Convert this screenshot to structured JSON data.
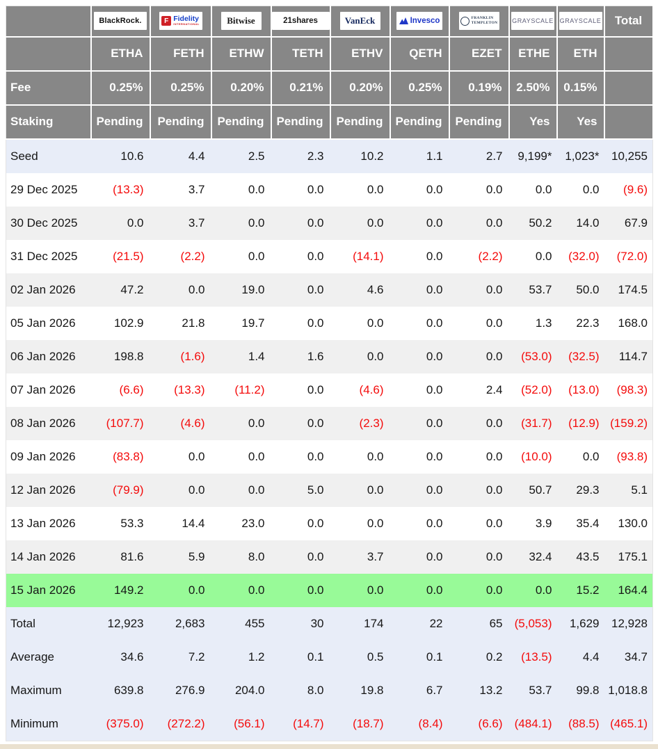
{
  "colors": {
    "header_bg": "#878787",
    "header_text": "#ffffff",
    "seed_bg": "#e8edf8",
    "summary_bg": "#e8edf8",
    "alt_bg": "#f0f0f0",
    "green_bg": "#98fa98",
    "negative_text": "#f40b0b",
    "text": "#161616",
    "page_strip": "#eae1cf",
    "invesco_blue": "#2038c8"
  },
  "chart_data": {
    "type": "table",
    "header": {
      "total_label": "Total",
      "fee_label": "Fee",
      "staking_label": "Staking"
    },
    "logos": {
      "blackrock": {
        "text": "BlackRock."
      },
      "fidelity": {
        "icon_letter": "F",
        "text": "Fidelity",
        "subtext": "INTERNATIONAL"
      },
      "bitwise": {
        "text": "Bitwise"
      },
      "shares21": {
        "text": "21shares"
      },
      "vaneck": {
        "text": "VanEck"
      },
      "invesco": {
        "text": "Invesco"
      },
      "franklin": {
        "line1": "FRANKLIN",
        "line2": "TEMPLETON"
      },
      "grayscale": {
        "text": "GRAYSCALE"
      }
    },
    "providers": [
      {
        "logo": "blackrock",
        "issuer": "BlackRock",
        "ticker": "ETHA",
        "fee": "0.25%",
        "staking": "Pending"
      },
      {
        "logo": "fidelity",
        "issuer": "Fidelity",
        "ticker": "FETH",
        "fee": "0.25%",
        "staking": "Pending"
      },
      {
        "logo": "bitwise",
        "issuer": "Bitwise",
        "ticker": "ETHW",
        "fee": "0.20%",
        "staking": "Pending"
      },
      {
        "logo": "shares21",
        "issuer": "21shares",
        "ticker": "TETH",
        "fee": "0.21%",
        "staking": "Pending"
      },
      {
        "logo": "vaneck",
        "issuer": "VanEck",
        "ticker": "ETHV",
        "fee": "0.20%",
        "staking": "Pending"
      },
      {
        "logo": "invesco",
        "issuer": "Invesco",
        "ticker": "QETH",
        "fee": "0.25%",
        "staking": "Pending"
      },
      {
        "logo": "franklin",
        "issuer": "Franklin Templeton",
        "ticker": "EZET",
        "fee": "0.19%",
        "staking": "Pending"
      },
      {
        "logo": "grayscale",
        "issuer": "Grayscale",
        "ticker": "ETHE",
        "fee": "2.50%",
        "staking": "Yes"
      },
      {
        "logo": "grayscale",
        "issuer": "Grayscale",
        "ticker": "ETH",
        "fee": "0.15%",
        "staking": "Yes"
      }
    ],
    "rows": [
      {
        "label": "Seed",
        "values": [
          "10.6",
          "4.4",
          "2.5",
          "2.3",
          "10.2",
          "1.1",
          "2.7",
          "9,199*",
          "1,023*"
        ],
        "total": "10,255",
        "style": "seed"
      },
      {
        "label": "29 Dec 2025",
        "values": [
          "(13.3)",
          "3.7",
          "0.0",
          "0.0",
          "0.0",
          "0.0",
          "0.0",
          "0.0",
          "0.0"
        ],
        "total": "(9.6)",
        "style": "plain"
      },
      {
        "label": "30 Dec 2025",
        "values": [
          "0.0",
          "3.7",
          "0.0",
          "0.0",
          "0.0",
          "0.0",
          "0.0",
          "50.2",
          "14.0"
        ],
        "total": "67.9",
        "style": "alt"
      },
      {
        "label": "31 Dec 2025",
        "values": [
          "(21.5)",
          "(2.2)",
          "0.0",
          "0.0",
          "(14.1)",
          "0.0",
          "(2.2)",
          "0.0",
          "(32.0)"
        ],
        "total": "(72.0)",
        "style": "plain"
      },
      {
        "label": "02 Jan 2026",
        "values": [
          "47.2",
          "0.0",
          "19.0",
          "0.0",
          "4.6",
          "0.0",
          "0.0",
          "53.7",
          "50.0"
        ],
        "total": "174.5",
        "style": "alt"
      },
      {
        "label": "05 Jan 2026",
        "values": [
          "102.9",
          "21.8",
          "19.7",
          "0.0",
          "0.0",
          "0.0",
          "0.0",
          "1.3",
          "22.3"
        ],
        "total": "168.0",
        "style": "plain"
      },
      {
        "label": "06 Jan 2026",
        "values": [
          "198.8",
          "(1.6)",
          "1.4",
          "1.6",
          "0.0",
          "0.0",
          "0.0",
          "(53.0)",
          "(32.5)"
        ],
        "total": "114.7",
        "style": "alt"
      },
      {
        "label": "07 Jan 2026",
        "values": [
          "(6.6)",
          "(13.3)",
          "(11.2)",
          "0.0",
          "(4.6)",
          "0.0",
          "2.4",
          "(52.0)",
          "(13.0)"
        ],
        "total": "(98.3)",
        "style": "plain"
      },
      {
        "label": "08 Jan 2026",
        "values": [
          "(107.7)",
          "(4.6)",
          "0.0",
          "0.0",
          "(2.3)",
          "0.0",
          "0.0",
          "(31.7)",
          "(12.9)"
        ],
        "total": "(159.2)",
        "style": "alt"
      },
      {
        "label": "09 Jan 2026",
        "values": [
          "(83.8)",
          "0.0",
          "0.0",
          "0.0",
          "0.0",
          "0.0",
          "0.0",
          "(10.0)",
          "0.0"
        ],
        "total": "(93.8)",
        "style": "plain"
      },
      {
        "label": "12 Jan 2026",
        "values": [
          "(79.9)",
          "0.0",
          "0.0",
          "5.0",
          "0.0",
          "0.0",
          "0.0",
          "50.7",
          "29.3"
        ],
        "total": "5.1",
        "style": "alt"
      },
      {
        "label": "13 Jan 2026",
        "values": [
          "53.3",
          "14.4",
          "23.0",
          "0.0",
          "0.0",
          "0.0",
          "0.0",
          "3.9",
          "35.4"
        ],
        "total": "130.0",
        "style": "plain"
      },
      {
        "label": "14 Jan 2026",
        "values": [
          "81.6",
          "5.9",
          "8.0",
          "0.0",
          "3.7",
          "0.0",
          "0.0",
          "32.4",
          "43.5"
        ],
        "total": "175.1",
        "style": "alt"
      },
      {
        "label": "15 Jan 2026",
        "values": [
          "149.2",
          "0.0",
          "0.0",
          "0.0",
          "0.0",
          "0.0",
          "0.0",
          "0.0",
          "15.2"
        ],
        "total": "164.4",
        "style": "green"
      },
      {
        "label": "Total",
        "values": [
          "12,923",
          "2,683",
          "455",
          "30",
          "174",
          "22",
          "65",
          "(5,053)",
          "1,629"
        ],
        "total": "12,928",
        "style": "summary"
      },
      {
        "label": "Average",
        "values": [
          "34.6",
          "7.2",
          "1.2",
          "0.1",
          "0.5",
          "0.1",
          "0.2",
          "(13.5)",
          "4.4"
        ],
        "total": "34.7",
        "style": "summary"
      },
      {
        "label": "Maximum",
        "values": [
          "639.8",
          "276.9",
          "204.0",
          "8.0",
          "19.8",
          "6.7",
          "13.2",
          "53.7",
          "99.8"
        ],
        "total": "1,018.8",
        "style": "summary"
      },
      {
        "label": "Minimum",
        "values": [
          "(375.0)",
          "(272.2)",
          "(56.1)",
          "(14.7)",
          "(18.7)",
          "(8.4)",
          "(6.6)",
          "(484.1)",
          "(88.5)"
        ],
        "total": "(465.1)",
        "style": "summary"
      }
    ]
  }
}
